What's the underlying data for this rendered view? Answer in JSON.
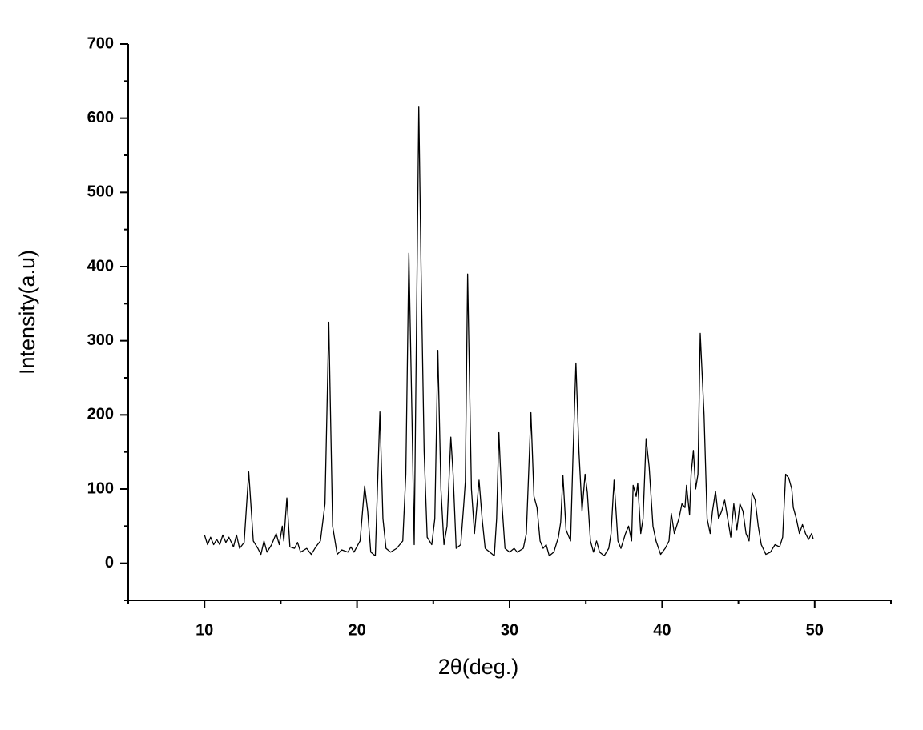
{
  "chart_data": {
    "type": "line",
    "xlabel": "2θ(deg.)",
    "ylabel": "Intensity(a.u)",
    "color": "#000000",
    "xlim": [
      5,
      55
    ],
    "xticks": [
      10,
      20,
      30,
      40,
      50
    ],
    "xminorticks": [
      5,
      15,
      25,
      35,
      45,
      55
    ],
    "ylim": [
      -50,
      700
    ],
    "yticks": [
      0,
      100,
      200,
      300,
      400,
      500,
      600,
      700
    ],
    "yminorticks": [
      -50,
      50,
      150,
      250,
      350,
      450,
      550,
      650
    ],
    "x": [
      10.0,
      10.2,
      10.4,
      10.6,
      10.8,
      11.0,
      11.2,
      11.4,
      11.6,
      11.9,
      12.1,
      12.3,
      12.6,
      12.9,
      13.2,
      13.5,
      13.7,
      13.9,
      14.1,
      14.4,
      14.7,
      14.9,
      15.1,
      15.2,
      15.4,
      15.6,
      15.9,
      16.1,
      16.3,
      16.7,
      17.0,
      17.3,
      17.6,
      17.9,
      18.15,
      18.4,
      18.7,
      19.0,
      19.4,
      19.6,
      19.8,
      20.2,
      20.5,
      20.7,
      20.9,
      21.2,
      21.5,
      21.7,
      21.9,
      22.2,
      22.6,
      23.0,
      23.2,
      23.4,
      23.6,
      23.75,
      24.05,
      24.2,
      24.4,
      24.6,
      24.9,
      25.1,
      25.3,
      25.5,
      25.7,
      25.9,
      26.15,
      26.3,
      26.5,
      26.8,
      27.0,
      27.1,
      27.25,
      27.5,
      27.7,
      28.0,
      28.2,
      28.4,
      28.7,
      29.0,
      29.15,
      29.3,
      29.5,
      29.7,
      30.0,
      30.3,
      30.5,
      30.9,
      31.1,
      31.4,
      31.6,
      31.8,
      32.0,
      32.2,
      32.4,
      32.6,
      32.9,
      33.2,
      33.35,
      33.5,
      33.7,
      34.0,
      34.15,
      34.35,
      34.55,
      34.75,
      34.95,
      35.1,
      35.3,
      35.5,
      35.7,
      35.9,
      36.2,
      36.5,
      36.65,
      36.85,
      37.1,
      37.3,
      37.6,
      37.8,
      38.0,
      38.1,
      38.3,
      38.4,
      38.6,
      38.75,
      38.95,
      39.15,
      39.4,
      39.6,
      39.9,
      40.2,
      40.45,
      40.6,
      40.8,
      41.1,
      41.3,
      41.5,
      41.6,
      41.8,
      41.9,
      42.05,
      42.2,
      42.35,
      42.5,
      42.75,
      42.95,
      43.15,
      43.3,
      43.5,
      43.7,
      43.9,
      44.1,
      44.3,
      44.5,
      44.7,
      44.9,
      45.1,
      45.3,
      45.5,
      45.7,
      45.9,
      46.1,
      46.3,
      46.5,
      46.8,
      47.1,
      47.4,
      47.7,
      47.9,
      48.1,
      48.3,
      48.5,
      48.6,
      48.8,
      49.0,
      49.2,
      49.4,
      49.6,
      49.8,
      49.9
    ],
    "values": [
      38,
      25,
      35,
      25,
      32,
      25,
      38,
      28,
      35,
      22,
      38,
      20,
      28,
      123,
      30,
      20,
      12,
      30,
      15,
      25,
      40,
      25,
      50,
      30,
      88,
      22,
      20,
      28,
      15,
      20,
      12,
      22,
      30,
      80,
      325,
      50,
      12,
      18,
      15,
      22,
      15,
      30,
      104,
      70,
      15,
      10,
      204,
      60,
      20,
      15,
      20,
      30,
      120,
      418,
      200,
      25,
      615,
      395,
      150,
      35,
      25,
      60,
      287,
      100,
      25,
      50,
      170,
      120,
      20,
      25,
      80,
      110,
      390,
      100,
      40,
      112,
      60,
      20,
      15,
      10,
      60,
      176,
      80,
      20,
      15,
      20,
      15,
      20,
      40,
      203,
      90,
      75,
      30,
      20,
      25,
      10,
      15,
      35,
      55,
      118,
      45,
      30,
      140,
      270,
      150,
      70,
      120,
      95,
      30,
      15,
      30,
      15,
      10,
      20,
      40,
      112,
      30,
      20,
      40,
      50,
      30,
      105,
      90,
      108,
      40,
      60,
      168,
      130,
      50,
      30,
      12,
      20,
      30,
      67,
      40,
      60,
      80,
      75,
      105,
      65,
      120,
      152,
      100,
      120,
      310,
      200,
      60,
      40,
      70,
      97,
      60,
      70,
      85,
      60,
      35,
      80,
      45,
      80,
      70,
      40,
      30,
      95,
      85,
      50,
      25,
      12,
      15,
      25,
      22,
      35,
      120,
      115,
      100,
      75,
      60,
      40,
      52,
      40,
      32,
      40,
      33
    ]
  }
}
